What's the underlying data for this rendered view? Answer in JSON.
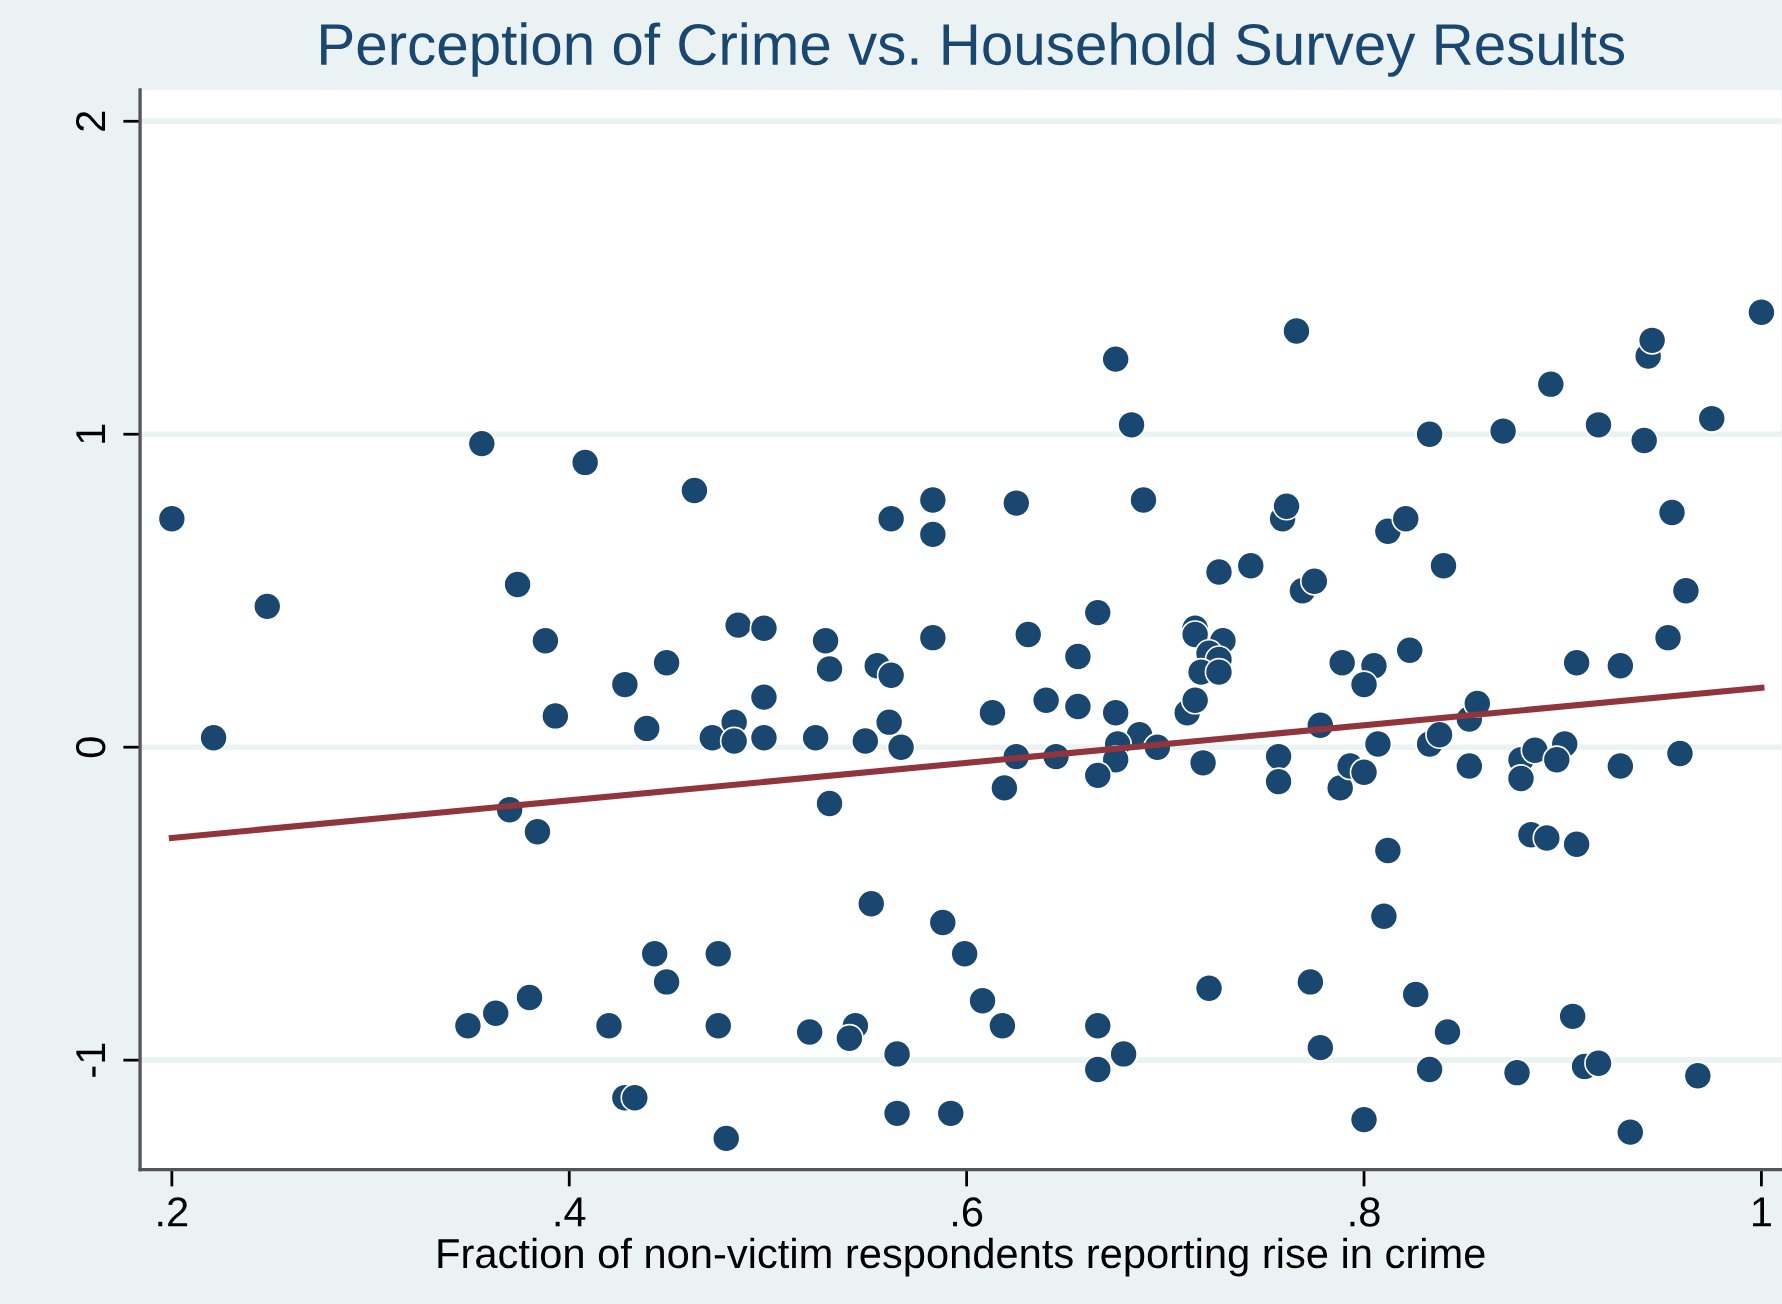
{
  "chart_data": {
    "type": "scatter",
    "title": "Perception of Crime vs. Household Survey Results",
    "xlabel": "Fraction of non-victim respondents reporting rise in crime",
    "xlim": [
      0.184,
      1.01
    ],
    "ylim": [
      -1.35,
      2.1
    ],
    "xticks": [
      {
        "value": 0.2,
        "label": ".2"
      },
      {
        "value": 0.4,
        "label": ".4"
      },
      {
        "value": 0.6,
        "label": ".6"
      },
      {
        "value": 0.8,
        "label": ".8"
      },
      {
        "value": 1,
        "label": "1"
      }
    ],
    "yticks": [
      -1,
      0,
      1,
      2
    ],
    "grid": "y",
    "series": [
      {
        "color": "#1a476f",
        "marker": "circle",
        "x": [
          0.2,
          0.221,
          0.248,
          0.356,
          0.374,
          0.388,
          0.393,
          0.408,
          0.428,
          0.439,
          0.449,
          0.463,
          0.472,
          0.483,
          0.483,
          0.485,
          0.498,
          0.498,
          0.498,
          0.524,
          0.529,
          0.531,
          0.549,
          0.555,
          0.562,
          0.561,
          0.567,
          0.562,
          0.583,
          0.583,
          0.583,
          0.613,
          0.625,
          0.631,
          0.64,
          0.656,
          0.656,
          0.666,
          0.675,
          0.683,
          0.689,
          0.675,
          0.687,
          0.676,
          0.675,
          0.696,
          0.666,
          0.645,
          0.625,
          0.619,
          0.719,
          0.711,
          0.715,
          0.715,
          0.715,
          0.729,
          0.722,
          0.727,
          0.718,
          0.727,
          0.727,
          0.743,
          0.759,
          0.761,
          0.766,
          0.769,
          0.775,
          0.778,
          0.757,
          0.757,
          0.788,
          0.793,
          0.8,
          0.807,
          0.789,
          0.805,
          0.8,
          0.823,
          0.812,
          0.821,
          0.84,
          0.833,
          0.87,
          0.894,
          0.918,
          0.941,
          0.943,
          0.945,
          0.975,
          1.0,
          0.955,
          0.962,
          0.953,
          0.907,
          0.929,
          0.833,
          0.838,
          0.853,
          0.857,
          0.853,
          0.879,
          0.886,
          0.901,
          0.897,
          0.879,
          0.929,
          0.959,
          0.37,
          0.384,
          0.531,
          0.552,
          0.588,
          0.599,
          0.443,
          0.475,
          0.449,
          0.38,
          0.363,
          0.349,
          0.42,
          0.475,
          0.521,
          0.544,
          0.541,
          0.565,
          0.428,
          0.433,
          0.479,
          0.565,
          0.592,
          0.608,
          0.618,
          0.666,
          0.666,
          0.679,
          0.722,
          0.773,
          0.778,
          0.8,
          0.81,
          0.812,
          0.826,
          0.842,
          0.833,
          0.877,
          0.884,
          0.892,
          0.907,
          0.905,
          0.911,
          0.918,
          0.934,
          0.968
        ],
        "values": [
          0.73,
          0.03,
          0.45,
          0.97,
          0.52,
          0.34,
          0.1,
          0.91,
          0.2,
          0.06,
          0.27,
          0.82,
          0.03,
          0.08,
          0.02,
          0.39,
          0.38,
          0.16,
          0.03,
          0.03,
          0.34,
          0.25,
          0.02,
          0.26,
          0.23,
          0.08,
          0,
          0.73,
          0.79,
          0.68,
          0.35,
          0.11,
          0.78,
          0.36,
          0.15,
          0.29,
          0.13,
          0.43,
          1.24,
          1.03,
          0.79,
          0.11,
          0.04,
          0.01,
          -0.04,
          0,
          -0.09,
          -0.03,
          -0.03,
          -0.13,
          -0.05,
          0.11,
          0.15,
          0.38,
          0.36,
          0.34,
          0.3,
          0.28,
          0.24,
          0.24,
          0.56,
          0.58,
          0.73,
          0.77,
          1.33,
          0.5,
          0.53,
          0.07,
          -0.03,
          -0.11,
          -0.13,
          -0.06,
          -0.08,
          0.01,
          0.27,
          0.26,
          0.2,
          0.31,
          0.69,
          0.73,
          0.58,
          1.0,
          1.01,
          1.16,
          1.03,
          0.98,
          1.25,
          1.3,
          1.05,
          1.39,
          0.75,
          0.5,
          0.35,
          0.27,
          0.26,
          0.01,
          0.04,
          0.09,
          0.14,
          -0.06,
          -0.04,
          -0.01,
          0.01,
          -0.04,
          -0.1,
          -0.06,
          -0.02,
          -0.2,
          -0.27,
          -0.18,
          -0.5,
          -0.56,
          -0.66,
          -0.66,
          -0.66,
          -0.75,
          -0.8,
          -0.85,
          -0.89,
          -0.89,
          -0.89,
          -0.91,
          -0.89,
          -0.93,
          -0.98,
          -1.12,
          -1.12,
          -1.25,
          -1.17,
          -1.17,
          -0.81,
          -0.89,
          -0.89,
          -1.03,
          -0.98,
          -0.77,
          -0.75,
          -0.96,
          -1.19,
          -0.54,
          -0.33,
          -0.79,
          -0.91,
          -1.03,
          -1.04,
          -0.28,
          -0.29,
          -0.31,
          -0.86,
          -1.02,
          -1.01,
          -1.23,
          -1.05
        ]
      },
      {
        "type": "line",
        "color": "#90353b",
        "x": [
          0.2,
          1.0
        ],
        "values": [
          -0.29,
          0.19
        ]
      }
    ]
  }
}
